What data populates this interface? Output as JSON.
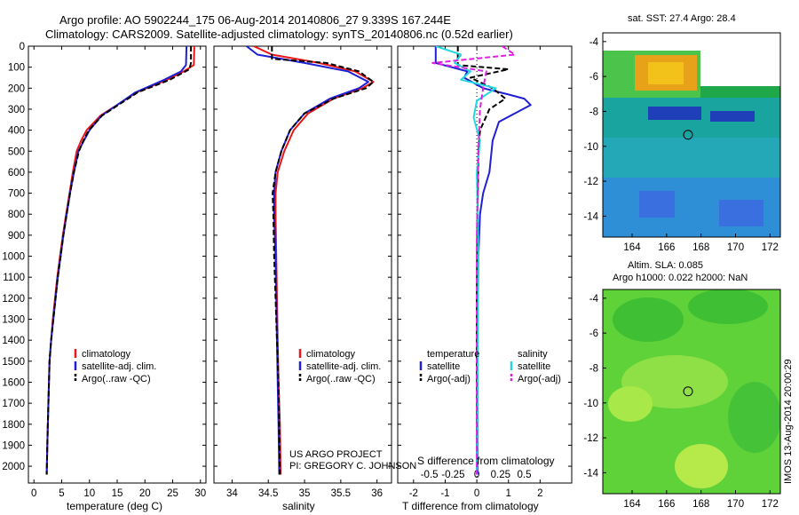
{
  "header": {
    "title_line1": "Argo profile: AO 5902244_175 06-Aug-2014 20140806_27 9.339S 167.244E",
    "title_line2": "Climatology: CARS2009. Satellite-adjusted climatology: synTS_20140806.nc (0.52d earlier)"
  },
  "colors": {
    "climatology": "#e8171b",
    "satellite": "#1f1fd6",
    "argo": "#000000",
    "salinity_satellite": "#22d8e0",
    "salinity_argo": "#e020e0"
  },
  "project": {
    "line1": "US ARGO PROJECT",
    "line2": "PI: GREGORY C. JOHNSON"
  },
  "timestamp": "IMOS 13-Aug-2014 20:00:29",
  "chart_data": [
    {
      "type": "line",
      "name": "temperature-profile",
      "xlabel": "temperature (deg C)",
      "ylabel": "",
      "xlim": [
        -1,
        31
      ],
      "ylim": [
        2080,
        0
      ],
      "xticks": [
        0,
        5,
        10,
        15,
        20,
        25,
        30
      ],
      "yticks": [
        0,
        100,
        200,
        300,
        400,
        500,
        600,
        700,
        800,
        900,
        1000,
        1100,
        1200,
        1300,
        1400,
        1500,
        1600,
        1700,
        1800,
        1900,
        2000
      ],
      "legend": [
        "climatology",
        "satellite-adj. clim.",
        "Argo(..raw -QC)"
      ],
      "series": [
        {
          "name": "climatology",
          "color": "#e8171b",
          "x": [
            28.9,
            28.8,
            27.0,
            24.0,
            18.5,
            15.0,
            12.0,
            9.5,
            8.5,
            7.7,
            7.0,
            6.4,
            5.8,
            5.2,
            4.7,
            4.2,
            3.8,
            3.4,
            3.1,
            2.8,
            2.6,
            2.4,
            2.3
          ],
          "depth": [
            0,
            90,
            120,
            160,
            220,
            280,
            330,
            400,
            450,
            500,
            600,
            700,
            800,
            900,
            1000,
            1100,
            1200,
            1300,
            1400,
            1500,
            1700,
            1900,
            2040
          ]
        },
        {
          "name": "satellite-adj. clim.",
          "color": "#1f1fd6",
          "x": [
            27.5,
            27.4,
            26.5,
            23.5,
            18.3,
            15.0,
            12.2,
            10.0,
            9.0,
            8.0,
            7.2,
            6.5,
            5.9,
            5.3,
            4.8,
            4.3,
            3.9,
            3.5,
            3.1,
            2.8,
            2.6,
            2.4,
            2.3
          ],
          "depth": [
            0,
            90,
            120,
            160,
            220,
            280,
            330,
            400,
            450,
            500,
            600,
            700,
            800,
            900,
            1000,
            1100,
            1200,
            1300,
            1400,
            1500,
            1700,
            1900,
            2040
          ]
        },
        {
          "name": "Argo(..raw -QC)",
          "color": "#000000",
          "x": [
            28.3,
            28.3,
            28.0,
            24.5,
            18.7,
            15.2,
            12.3,
            9.9,
            8.9,
            8.1,
            7.2,
            6.5,
            5.9,
            5.3,
            4.8,
            4.3,
            3.9,
            3.5,
            3.1,
            2.8,
            2.6,
            2.4,
            2.3
          ],
          "depth": [
            0,
            80,
            110,
            160,
            220,
            280,
            330,
            400,
            450,
            500,
            600,
            700,
            800,
            900,
            1000,
            1100,
            1200,
            1300,
            1400,
            1500,
            1700,
            1900,
            2040
          ]
        }
      ]
    },
    {
      "type": "line",
      "name": "salinity-profile",
      "xlabel": "salinity",
      "ylabel": "",
      "xlim": [
        33.75,
        36.2
      ],
      "ylim": [
        2080,
        0
      ],
      "xticks": [
        34,
        34.5,
        35,
        35.5,
        36
      ],
      "xticklabels": [
        "34",
        "34.5",
        "35",
        "35.5",
        "36"
      ],
      "legend": [
        "climatology",
        "satellite-adj. clim.",
        "Argo(..raw -QC)"
      ],
      "series": [
        {
          "name": "climatology",
          "color": "#e8171b",
          "x": [
            34.3,
            34.55,
            35.2,
            35.7,
            35.95,
            35.8,
            35.4,
            35.05,
            34.85,
            34.72,
            34.63,
            34.6,
            34.6,
            34.61,
            34.62,
            34.63,
            34.64,
            34.66,
            34.67
          ],
          "depth": [
            0,
            40,
            80,
            120,
            170,
            200,
            250,
            320,
            400,
            500,
            600,
            700,
            800,
            1000,
            1200,
            1400,
            1600,
            1800,
            2040
          ]
        },
        {
          "name": "satellite-adj. clim.",
          "color": "#1f1fd6",
          "x": [
            34.2,
            34.35,
            35.0,
            35.6,
            35.88,
            35.75,
            35.35,
            35.0,
            34.8,
            34.68,
            34.6,
            34.58,
            34.58,
            34.6,
            34.61,
            34.62,
            34.63,
            34.64,
            34.65
          ],
          "depth": [
            0,
            40,
            80,
            120,
            170,
            200,
            250,
            320,
            400,
            500,
            600,
            700,
            800,
            1000,
            1200,
            1400,
            1600,
            1800,
            2040
          ]
        },
        {
          "name": "Argo(..raw -QC)",
          "color": "#000000",
          "x": [
            34.55,
            34.55,
            34.55,
            35.3,
            35.75,
            35.95,
            35.85,
            35.4,
            35.0,
            34.8,
            34.68,
            34.6,
            34.56,
            34.57,
            34.58,
            34.6,
            34.62,
            34.64,
            34.66
          ],
          "depth": [
            0,
            40,
            60,
            80,
            120,
            170,
            200,
            250,
            320,
            400,
            500,
            600,
            700,
            800,
            1000,
            1200,
            1400,
            1600,
            2040
          ]
        }
      ]
    },
    {
      "type": "line",
      "name": "difference-profile",
      "xlabel": "T difference from climatology",
      "xlabel_top": "S difference from climatology",
      "xlim": [
        -2.5,
        3.0
      ],
      "ylim": [
        2080,
        0
      ],
      "xticks": [
        -2,
        -1,
        0,
        1,
        2
      ],
      "xticklabels_bottom": [
        "-2",
        "-1",
        "0",
        "1",
        "2"
      ],
      "xticks_top": [
        -1.5,
        -0.75,
        0,
        0.75,
        1.5
      ],
      "xticklabels_top": [
        "-0.5",
        "-0.25",
        "0",
        "0.25",
        "0.5"
      ],
      "legend_temperature_title": "temperature",
      "legend_salinity_title": "salinity",
      "legend": [
        "satellite",
        "Argo(-adj)",
        "satellite",
        "Argo(-adj)"
      ],
      "series": [
        {
          "name": "satellite",
          "group": "temperature",
          "color": "#1f1fd6",
          "x": [
            -1.3,
            -1.3,
            -0.3,
            -0.4,
            0.2,
            1.0,
            1.5,
            1.7,
            1.2,
            0.7,
            0.5,
            0.4,
            0.2,
            0.1,
            0.05,
            0.03,
            0.02,
            0.02
          ],
          "depth": [
            0,
            80,
            120,
            150,
            200,
            230,
            250,
            280,
            320,
            360,
            450,
            600,
            700,
            800,
            1000,
            1300,
            1700,
            2040
          ]
        },
        {
          "name": "Argo(-adj)",
          "group": "temperature",
          "color": "#000000",
          "x": [
            -0.6,
            -0.6,
            1.0,
            -0.2,
            0.5,
            0.9,
            0.4,
            0.1,
            0.05,
            0.02,
            0.0,
            0.0
          ],
          "depth": [
            0,
            90,
            110,
            150,
            200,
            250,
            300,
            400,
            500,
            800,
            1200,
            2040
          ]
        },
        {
          "name": "satellite",
          "group": "salinity",
          "color": "#22d8e0",
          "x": [
            -1.3,
            -0.5,
            -0.7,
            -0.2,
            -0.5,
            0.6,
            0.0,
            -0.1,
            0.1,
            0.0,
            0.05,
            0.0
          ],
          "depth": [
            0,
            40,
            80,
            120,
            160,
            200,
            260,
            340,
            450,
            600,
            1000,
            2040
          ]
        },
        {
          "name": "Argo(-adj)",
          "group": "salinity",
          "color": "#e020e0",
          "x": [
            0.8,
            1.2,
            -1.4,
            0.3,
            0.2,
            0.1,
            0.05,
            0.0,
            0.0
          ],
          "depth": [
            0,
            40,
            80,
            120,
            200,
            300,
            500,
            900,
            2040
          ]
        }
      ]
    },
    {
      "type": "heatmap",
      "name": "sst-map",
      "title": "sat. SST: 27.4 Argo: 28.4",
      "xticks": [
        164,
        166,
        168,
        170,
        172
      ],
      "yticks": [
        -4,
        -6,
        -8,
        -10,
        -12,
        -14
      ],
      "xlim": [
        162.3,
        172.6
      ],
      "ylim": [
        -15.2,
        -3.5
      ],
      "argo_position": [
        167.244,
        -9.339
      ]
    },
    {
      "type": "heatmap",
      "name": "sla-map",
      "title_line1": "Altim. SLA: 0.085",
      "title_line2": "Argo h1000: 0.022 h2000: NaN",
      "xticks": [
        164,
        166,
        168,
        170,
        172
      ],
      "yticks": [
        -4,
        -6,
        -8,
        -10,
        -12,
        -14
      ],
      "xlim": [
        162.3,
        172.6
      ],
      "ylim": [
        -15.2,
        -3.5
      ],
      "argo_position": [
        167.244,
        -9.339
      ]
    }
  ]
}
